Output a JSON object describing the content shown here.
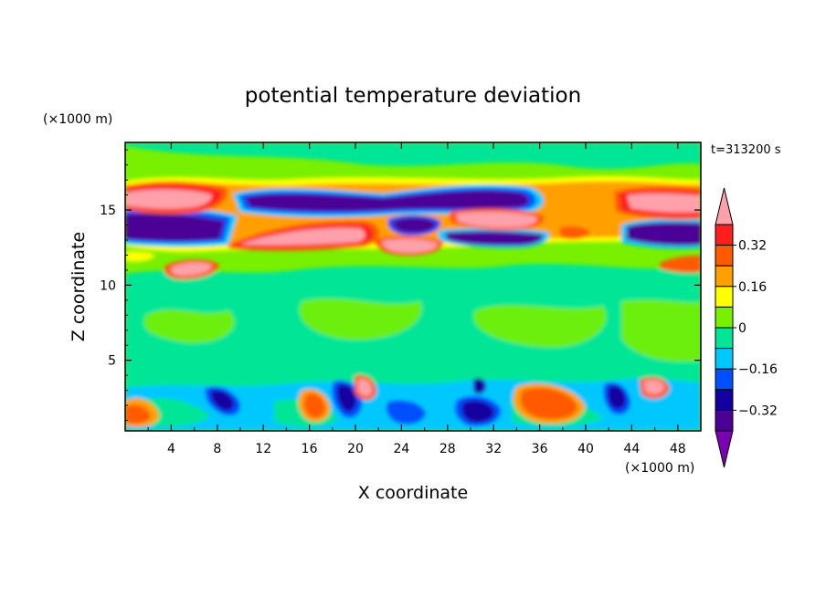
{
  "chart_data": {
    "type": "heatmap",
    "title": "potential temperature deviation",
    "xlabel": "X coordinate",
    "ylabel": "Z coordinate",
    "x_unit": "(×1000 m)",
    "y_unit": "(×1000 m)",
    "time_label": "t=313200 s",
    "xlim": [
      0,
      50
    ],
    "ylim": [
      0.3,
      19.5
    ],
    "x_ticks": [
      4,
      8,
      12,
      16,
      20,
      24,
      28,
      32,
      36,
      40,
      44,
      48
    ],
    "y_ticks": [
      5,
      10,
      15
    ],
    "colorbar": {
      "levels": [
        -0.48,
        -0.4,
        -0.32,
        -0.24,
        -0.16,
        -0.08,
        0,
        0.08,
        0.16,
        0.24,
        0.32,
        0.4
      ],
      "labeled_levels": [
        0.32,
        0.16,
        0,
        -0.16,
        -0.32
      ],
      "colors": [
        "#7b00b4",
        "#4b0096",
        "#1400a0",
        "#0050ff",
        "#00c8ff",
        "#00e696",
        "#78f000",
        "#ffff00",
        "#ffa000",
        "#ff5a00",
        "#ff1e1e",
        "#ffa0aa"
      ]
    },
    "features": [
      {
        "x": 3,
        "z": 16.2,
        "value": 0.48
      },
      {
        "x": 46,
        "z": 16.0,
        "value": 0.48
      },
      {
        "x": 19,
        "z": 14.0,
        "value": 0.48
      },
      {
        "x": 32,
        "z": 14.8,
        "value": 0.48
      },
      {
        "x": 24,
        "z": 13.1,
        "value": 0.48
      },
      {
        "x": 5.5,
        "z": 11.3,
        "value": 0.48
      },
      {
        "x": 20.5,
        "z": 3.0,
        "value": 0.48
      },
      {
        "x": 46,
        "z": 3.0,
        "value": 0.4
      },
      {
        "x": 30,
        "z": 16.2,
        "value": -0.48
      },
      {
        "x": 17,
        "z": 16.0,
        "value": -0.48
      },
      {
        "x": 4,
        "z": 13.9,
        "value": -0.48
      },
      {
        "x": 47,
        "z": 13.6,
        "value": -0.48
      },
      {
        "x": 32,
        "z": 13.2,
        "value": -0.48
      },
      {
        "x": 25,
        "z": 14.3,
        "value": -0.48
      },
      {
        "x": 8.5,
        "z": 1.9,
        "value": -0.4
      },
      {
        "x": 19,
        "z": 2.6,
        "value": -0.4
      },
      {
        "x": 31,
        "z": 1.6,
        "value": -0.4
      },
      {
        "x": 43,
        "z": 2.5,
        "value": -0.32
      },
      {
        "x": 36,
        "z": 2.0,
        "value": 0.32
      },
      {
        "x": 2,
        "z": 1.5,
        "value": 0.24
      },
      {
        "x": 16,
        "z": 1.5,
        "value": 0.24
      },
      {
        "x": 28,
        "z": 2.0,
        "value": -0.24
      }
    ]
  }
}
